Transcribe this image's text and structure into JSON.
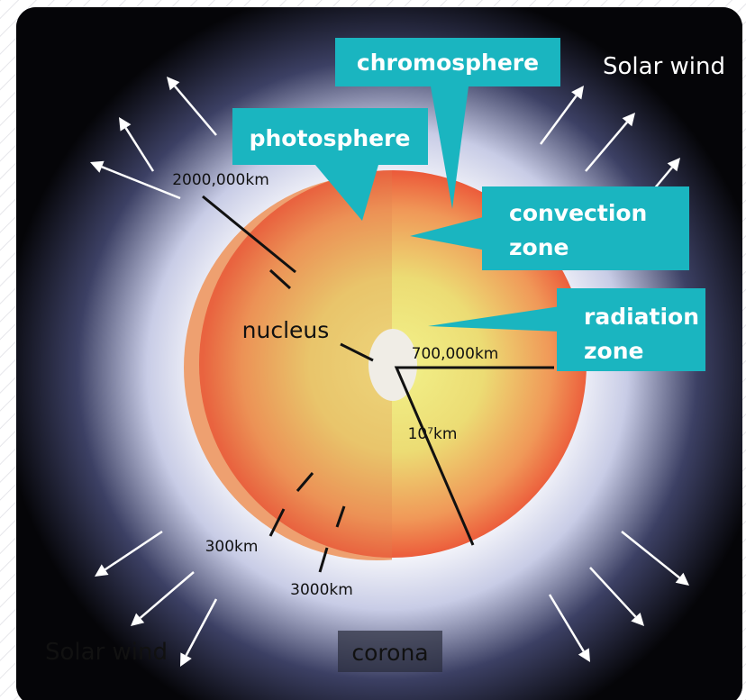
{
  "callouts": [
    "chromosphere",
    "photosphere",
    "convection zone",
    "radiation zone"
  ],
  "convection_lines": [
    "convection",
    "zone"
  ],
  "radiation_lines": [
    "radiation",
    "zone"
  ],
  "solar_wind_top": "Solar wind",
  "solar_wind_bottom": "Solar wind",
  "distances": {
    "outer": "2000,000km",
    "core": "700,000km",
    "radius": "10⁷km",
    "chromosphere": "300km",
    "photosphere": "3000km"
  },
  "nucleus": "nucleus",
  "corona": "corona"
}
